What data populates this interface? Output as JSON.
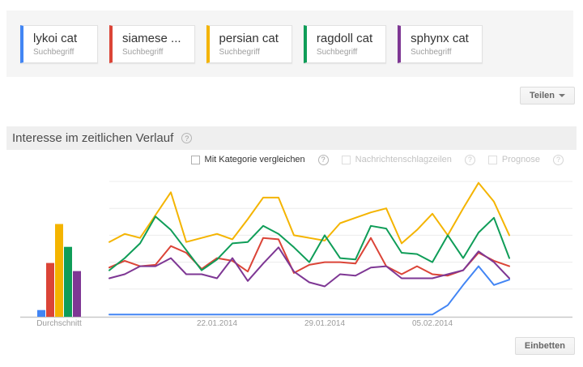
{
  "terms": [
    {
      "label": "lykoi cat",
      "type_label": "Suchbegriff",
      "color": "#4285f4"
    },
    {
      "label": "siamese ...",
      "type_label": "Suchbegriff",
      "color": "#db4437"
    },
    {
      "label": "persian cat",
      "type_label": "Suchbegriff",
      "color": "#f4b400"
    },
    {
      "label": "ragdoll cat",
      "type_label": "Suchbegriff",
      "color": "#0f9d58"
    },
    {
      "label": "sphynx cat",
      "type_label": "Suchbegriff",
      "color": "#7e3794"
    }
  ],
  "share_button": "Teilen",
  "embed_button": "Einbetten",
  "section": {
    "title": "Interesse im zeitlichen Verlauf"
  },
  "options": [
    {
      "label": "Mit Kategorie vergleichen",
      "enabled": true,
      "checked": false
    },
    {
      "label": "Nachrichtenschlagzeilen",
      "enabled": false,
      "checked": false
    },
    {
      "label": "Prognose",
      "enabled": false,
      "checked": false
    }
  ],
  "chart_data": {
    "type": "line",
    "title": "Interesse im zeitlichen Verlauf",
    "x_unit": "day",
    "x_start_date": "15.01.2014",
    "x_end_date": "10.02.2014",
    "n_points": 27,
    "ylim": [
      0,
      100
    ],
    "grid": true,
    "avg_label": "Durchschnitt",
    "ticks": [
      {
        "label": "22.01.2014",
        "index": 7
      },
      {
        "label": "29.01.2014",
        "index": 14
      },
      {
        "label": "05.02.2014",
        "index": 21
      }
    ],
    "series": [
      {
        "name": "lykoi cat",
        "color": "#4285f4",
        "average": 5,
        "values": [
          1,
          1,
          1,
          1,
          1,
          1,
          1,
          1,
          1,
          1,
          1,
          1,
          1,
          1,
          1,
          1,
          1,
          1,
          1,
          1,
          1,
          1,
          8,
          23,
          37,
          23,
          27
        ]
      },
      {
        "name": "siamese ...",
        "color": "#db4437",
        "average": 40,
        "values": [
          36,
          41,
          37,
          38,
          52,
          47,
          35,
          43,
          41,
          33,
          58,
          57,
          32,
          38,
          40,
          40,
          39,
          58,
          37,
          31,
          37,
          31,
          30,
          34,
          47,
          41,
          37
        ]
      },
      {
        "name": "persian cat",
        "color": "#f4b400",
        "average": 69,
        "values": [
          55,
          61,
          58,
          75,
          92,
          55,
          58,
          61,
          57,
          72,
          88,
          88,
          60,
          58,
          56,
          69,
          73,
          77,
          80,
          54,
          64,
          76,
          60,
          80,
          99,
          85,
          60
        ]
      },
      {
        "name": "ragdoll cat",
        "color": "#0f9d58",
        "average": 52,
        "values": [
          34,
          43,
          54,
          74,
          64,
          49,
          34,
          42,
          54,
          55,
          67,
          61,
          51,
          40,
          60,
          43,
          42,
          67,
          65,
          47,
          46,
          40,
          60,
          43,
          62,
          73,
          43
        ]
      },
      {
        "name": "sphynx cat",
        "color": "#7e3794",
        "average": 34,
        "values": [
          28,
          31,
          37,
          37,
          43,
          31,
          31,
          28,
          43,
          26,
          39,
          51,
          33,
          25,
          22,
          31,
          30,
          36,
          37,
          28,
          28,
          28,
          31,
          34,
          48,
          40,
          28
        ]
      }
    ]
  }
}
